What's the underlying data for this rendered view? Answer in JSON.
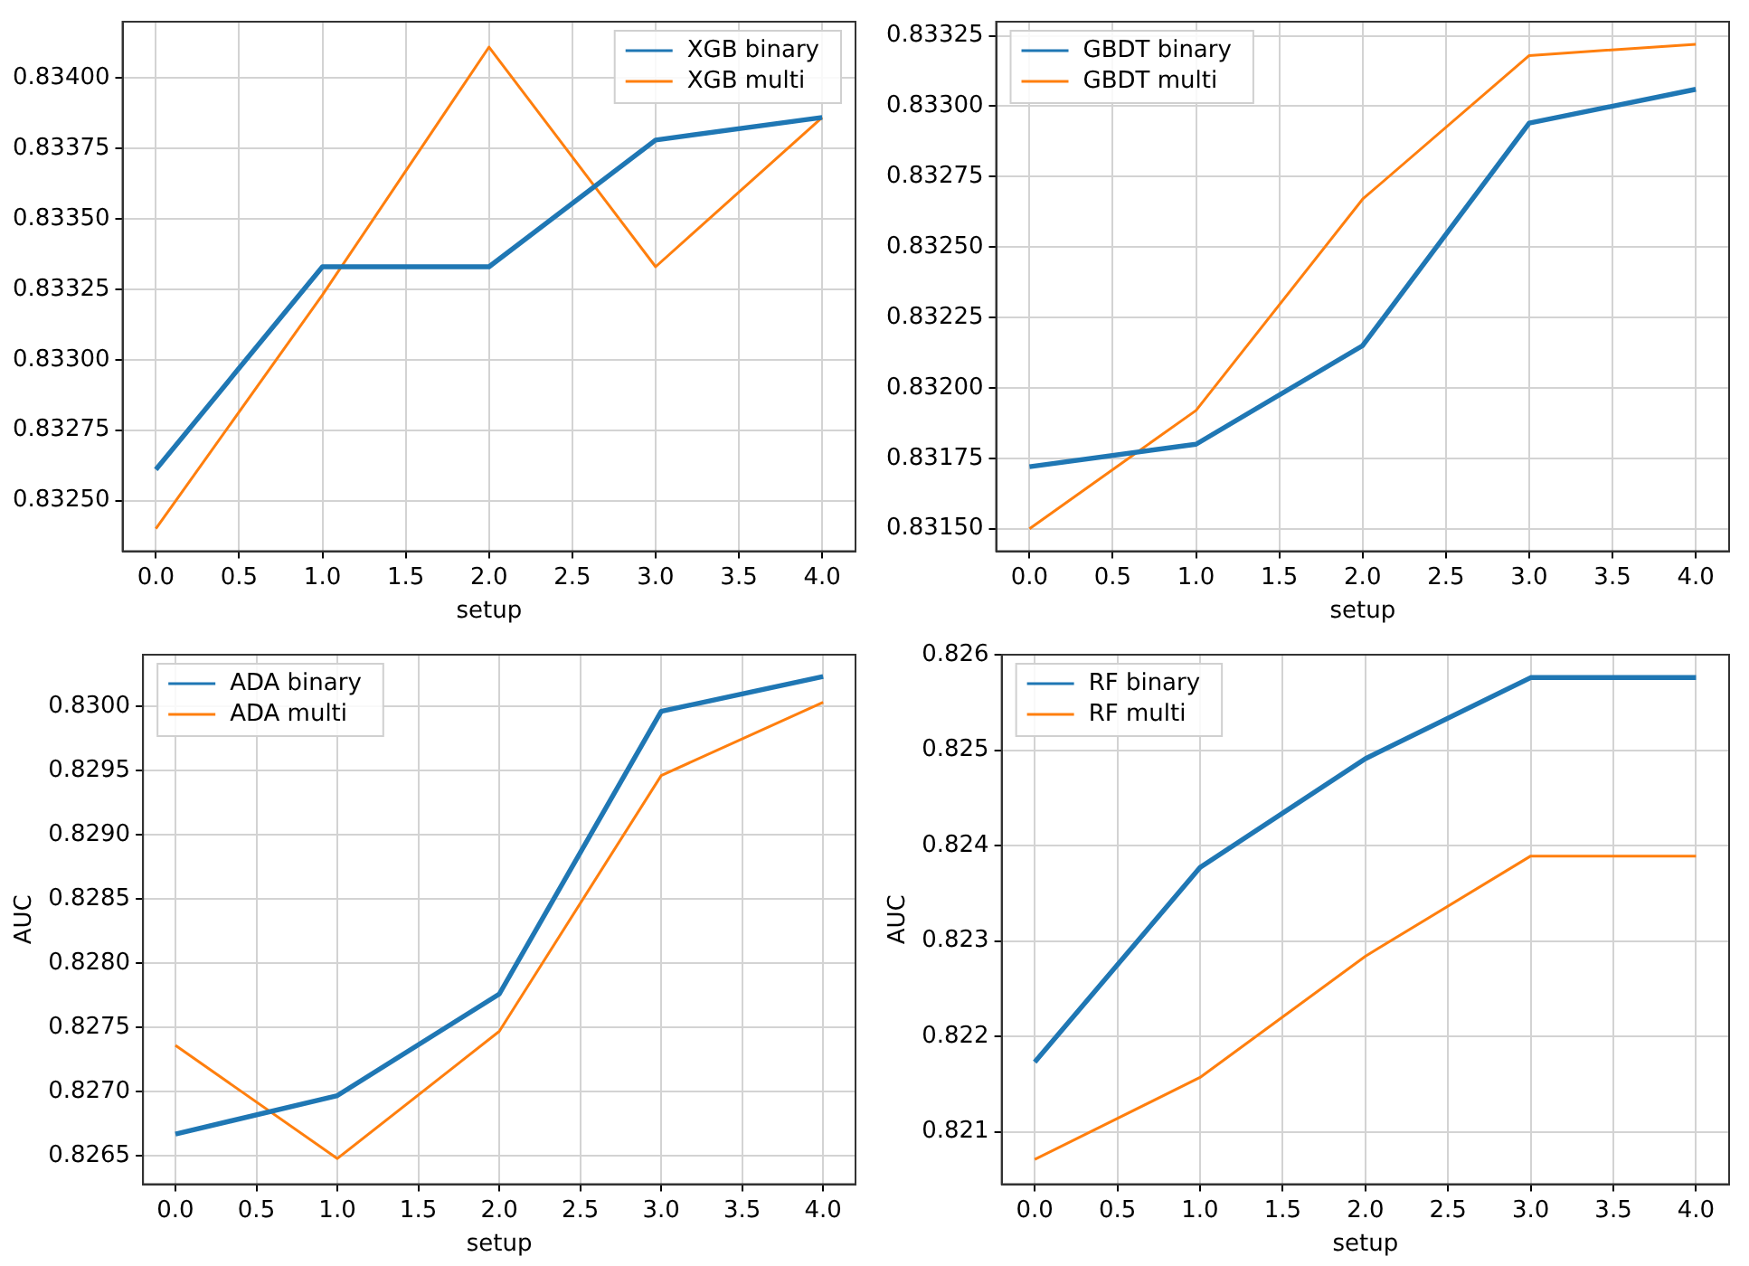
{
  "chart_data": [
    {
      "type": "line",
      "xlabel": "setup",
      "x": [
        0,
        1,
        2,
        3,
        4
      ],
      "xlim": [
        -0.2,
        4.2
      ],
      "xticks": [
        {
          "value": 0,
          "label": "0.0"
        },
        {
          "value": 0.5,
          "label": "0.5"
        },
        {
          "value": 1,
          "label": "1.0"
        },
        {
          "value": 1.5,
          "label": "1.5"
        },
        {
          "value": 2,
          "label": "2.0"
        },
        {
          "value": 2.5,
          "label": "2.5"
        },
        {
          "value": 3,
          "label": "3.0"
        },
        {
          "value": 3.5,
          "label": "3.5"
        },
        {
          "value": 4,
          "label": "4.0"
        }
      ],
      "ylim": [
        0.83232,
        0.8342
      ],
      "yticks": [
        {
          "value": 0.8325,
          "label": "0.83250"
        },
        {
          "value": 0.83275,
          "label": "0.83275"
        },
        {
          "value": 0.833,
          "label": "0.83300"
        },
        {
          "value": 0.83325,
          "label": "0.83325"
        },
        {
          "value": 0.8335,
          "label": "0.83350"
        },
        {
          "value": 0.83375,
          "label": "0.83375"
        },
        {
          "value": 0.834,
          "label": "0.83400"
        }
      ],
      "series": [
        {
          "name": "XGB binary",
          "color": "#1f77b4",
          "values": [
            0.83261,
            0.83333,
            0.83333,
            0.83378,
            0.83386
          ]
        },
        {
          "name": "XGB multi",
          "color": "#ff7f0e",
          "values": [
            0.8324,
            0.83323,
            0.83411,
            0.83333,
            0.83386
          ]
        }
      ],
      "grid": true,
      "legend": "top right",
      "marker": "none",
      "line_style": "solid"
    },
    {
      "type": "line",
      "xlabel": "setup",
      "x": [
        0,
        1,
        2,
        3,
        4
      ],
      "xlim": [
        -0.2,
        4.2
      ],
      "xticks": [
        {
          "value": 0,
          "label": "0.0"
        },
        {
          "value": 0.5,
          "label": "0.5"
        },
        {
          "value": 1,
          "label": "1.0"
        },
        {
          "value": 1.5,
          "label": "1.5"
        },
        {
          "value": 2,
          "label": "2.0"
        },
        {
          "value": 2.5,
          "label": "2.5"
        },
        {
          "value": 3,
          "label": "3.0"
        },
        {
          "value": 3.5,
          "label": "3.5"
        },
        {
          "value": 4,
          "label": "4.0"
        }
      ],
      "ylim": [
        0.83142,
        0.8333
      ],
      "yticks": [
        {
          "value": 0.8315,
          "label": "0.83150"
        },
        {
          "value": 0.83175,
          "label": "0.83175"
        },
        {
          "value": 0.832,
          "label": "0.83200"
        },
        {
          "value": 0.83225,
          "label": "0.83225"
        },
        {
          "value": 0.8325,
          "label": "0.83250"
        },
        {
          "value": 0.83275,
          "label": "0.83275"
        },
        {
          "value": 0.833,
          "label": "0.83300"
        },
        {
          "value": 0.83325,
          "label": "0.83325"
        }
      ],
      "series": [
        {
          "name": "GBDT binary",
          "color": "#1f77b4",
          "values": [
            0.83172,
            0.8318,
            0.83215,
            0.83294,
            0.83306
          ]
        },
        {
          "name": "GBDT multi",
          "color": "#ff7f0e",
          "values": [
            0.8315,
            0.83192,
            0.83267,
            0.83318,
            0.83322
          ]
        }
      ],
      "grid": true,
      "legend": "top left",
      "marker": "none",
      "line_style": "solid"
    },
    {
      "type": "line",
      "xlabel": "setup",
      "ylabel": "AUC",
      "x": [
        0,
        1,
        2,
        3,
        4
      ],
      "xlim": [
        -0.2,
        4.2
      ],
      "xticks": [
        {
          "value": 0,
          "label": "0.0"
        },
        {
          "value": 0.5,
          "label": "0.5"
        },
        {
          "value": 1,
          "label": "1.0"
        },
        {
          "value": 1.5,
          "label": "1.5"
        },
        {
          "value": 2,
          "label": "2.0"
        },
        {
          "value": 2.5,
          "label": "2.5"
        },
        {
          "value": 3,
          "label": "3.0"
        },
        {
          "value": 3.5,
          "label": "3.5"
        },
        {
          "value": 4,
          "label": "4.0"
        }
      ],
      "ylim": [
        0.82628,
        0.8304
      ],
      "yticks": [
        {
          "value": 0.8265,
          "label": "0.8265"
        },
        {
          "value": 0.827,
          "label": "0.8270"
        },
        {
          "value": 0.8275,
          "label": "0.8275"
        },
        {
          "value": 0.828,
          "label": "0.8280"
        },
        {
          "value": 0.8285,
          "label": "0.8285"
        },
        {
          "value": 0.829,
          "label": "0.8290"
        },
        {
          "value": 0.8295,
          "label": "0.8295"
        },
        {
          "value": 0.83,
          "label": "0.8300"
        }
      ],
      "series": [
        {
          "name": "ADA binary",
          "color": "#1f77b4",
          "values": [
            0.82667,
            0.82697,
            0.82776,
            0.82996,
            0.83023
          ]
        },
        {
          "name": "ADA multi",
          "color": "#ff7f0e",
          "values": [
            0.82736,
            0.82648,
            0.82747,
            0.82946,
            0.83003
          ]
        }
      ],
      "grid": true,
      "legend": "top left",
      "marker": "none",
      "line_style": "solid"
    },
    {
      "type": "line",
      "xlabel": "setup",
      "ylabel": "AUC",
      "x": [
        0,
        1,
        2,
        3,
        4
      ],
      "xlim": [
        -0.2,
        4.2
      ],
      "xticks": [
        {
          "value": 0,
          "label": "0.0"
        },
        {
          "value": 0.5,
          "label": "0.5"
        },
        {
          "value": 1,
          "label": "1.0"
        },
        {
          "value": 1.5,
          "label": "1.5"
        },
        {
          "value": 2,
          "label": "2.0"
        },
        {
          "value": 2.5,
          "label": "2.5"
        },
        {
          "value": 3,
          "label": "3.0"
        },
        {
          "value": 3.5,
          "label": "3.5"
        },
        {
          "value": 4,
          "label": "4.0"
        }
      ],
      "ylim": [
        0.82045,
        0.826
      ],
      "yticks": [
        0.821,
        0.822,
        0.823,
        0.824,
        0.825,
        0.826
      ],
      "series": [
        {
          "name": "RF binary",
          "color": "#1f77b4",
          "values": [
            0.82173,
            0.82377,
            0.82491,
            0.82576,
            0.82576
          ]
        },
        {
          "name": "RF multi",
          "color": "#ff7f0e",
          "values": [
            0.82071,
            0.82157,
            0.82284,
            0.82389,
            0.82389
          ]
        }
      ],
      "grid": true,
      "legend": "top left",
      "marker": "none",
      "line_style": "solid"
    }
  ]
}
